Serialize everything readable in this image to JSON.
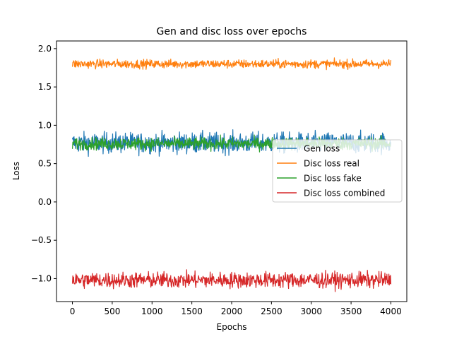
{
  "chart_data": {
    "type": "line",
    "title": "Gen and disc loss over epochs",
    "xlabel": "Epochs",
    "ylabel": "Loss",
    "xlim": [
      -200,
      4200
    ],
    "ylim": [
      -1.3,
      2.1
    ],
    "xticks": [
      0,
      500,
      1000,
      1500,
      2000,
      2500,
      3000,
      3500,
      4000
    ],
    "xtick_labels": [
      "0",
      "500",
      "1000",
      "1500",
      "2000",
      "2500",
      "3000",
      "3500",
      "4000"
    ],
    "yticks": [
      -1.0,
      -0.5,
      0.0,
      0.5,
      1.0,
      1.5,
      2.0
    ],
    "ytick_labels": [
      "−1.0",
      "−0.5",
      "0.0",
      "0.5",
      "1.0",
      "1.5",
      "2.0"
    ],
    "grid": false,
    "legend_position": "center-right",
    "x_range": [
      0,
      4000
    ],
    "series": [
      {
        "name": "Gen loss",
        "color": "#1f77b4",
        "mean": 0.77,
        "min": 0.56,
        "max": 0.96
      },
      {
        "name": "Disc loss real",
        "color": "#ff7f0e",
        "mean": 1.8,
        "min": 1.71,
        "max": 1.88
      },
      {
        "name": "Disc loss fake",
        "color": "#2ca02c",
        "mean": 0.76,
        "min": 0.64,
        "max": 0.88
      },
      {
        "name": "Disc loss combined",
        "color": "#d62728",
        "mean": -1.02,
        "min": -1.17,
        "max": -0.86
      }
    ]
  }
}
